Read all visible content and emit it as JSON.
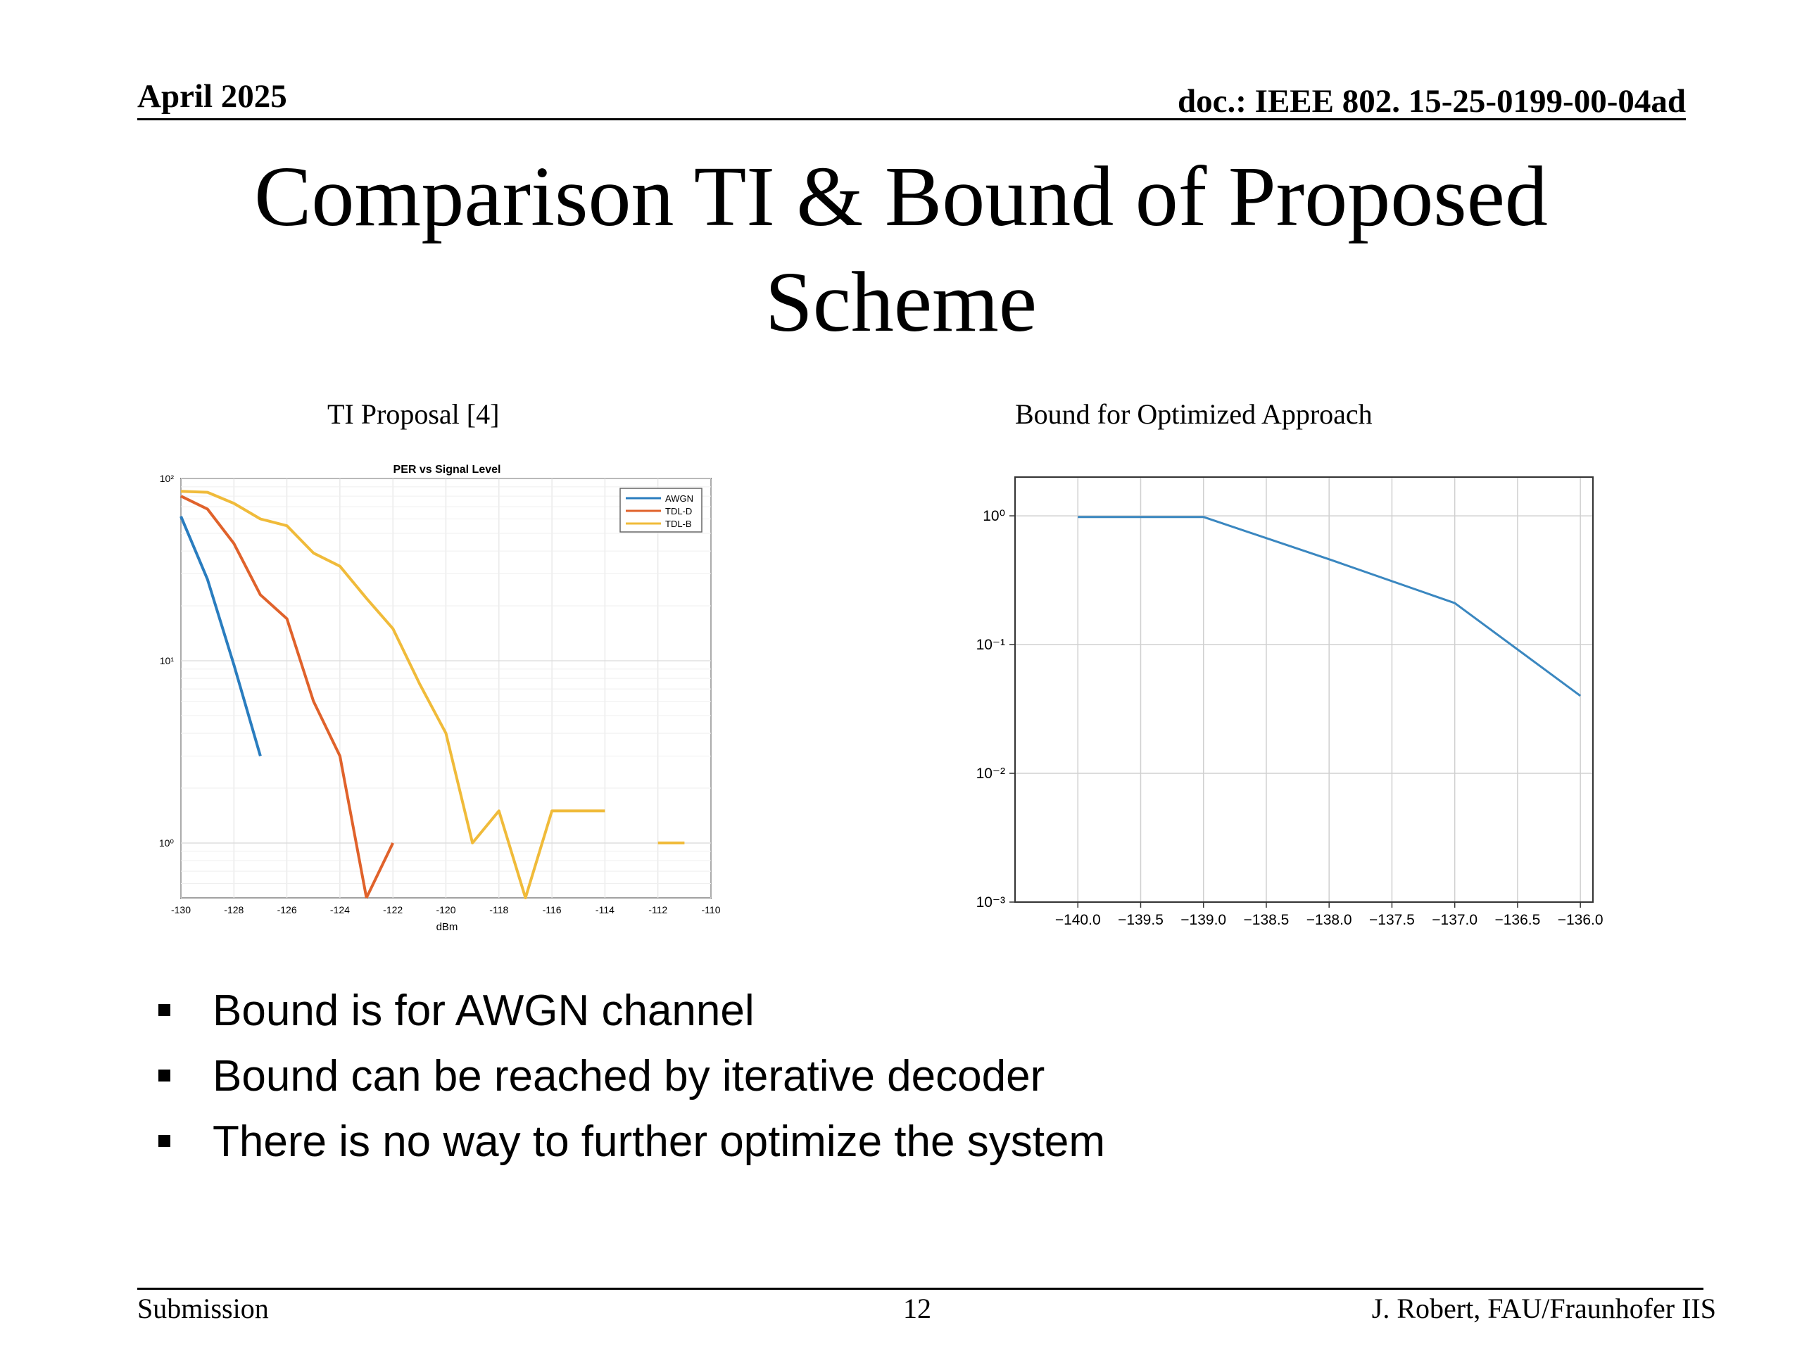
{
  "header": {
    "date": "April 2025",
    "doc": "doc.: IEEE 802. 15-25-0199-00-04ad"
  },
  "title": {
    "line1": "Comparison TI & Bound of Proposed",
    "line2": "Scheme"
  },
  "left_caption": "TI Proposal [4]",
  "right_caption": "Bound for Optimized Approach",
  "bullets": [
    "Bound is for AWGN channel",
    "Bound can be reached by iterative decoder",
    "There is no way to further optimize the system"
  ],
  "footer": {
    "left": "Submission",
    "page": "12",
    "right": "J. Robert, FAU/Fraunhofer IIS"
  },
  "chart_data": [
    {
      "type": "line",
      "title": "PER vs Signal Level",
      "xlabel": "dBm",
      "ylabel": "",
      "xlim": [
        -130,
        -110
      ],
      "ylim": [
        0.5,
        100
      ],
      "yscale": "log",
      "grid": true,
      "legend": "top-right",
      "x_ticks": [
        "-130",
        "-128",
        "-126",
        "-124",
        "-122",
        "-120",
        "-118",
        "-116",
        "-114",
        "-112",
        "-110"
      ],
      "y_ticks": [
        "10⁰",
        "10¹",
        "10²"
      ],
      "series": [
        {
          "name": "AWGN",
          "color": "#2a7dbf",
          "x": [
            -130,
            -129,
            -128,
            -127
          ],
          "y": [
            62,
            28,
            9.5,
            3
          ]
        },
        {
          "name": "TDL-D",
          "color": "#e0622b",
          "segments": [
            {
              "x": [
                -130,
                -129,
                -128,
                -127,
                -126,
                -125,
                -124,
                -123
              ],
              "y": [
                80,
                68,
                44,
                23,
                17,
                6,
                3,
                0.5
              ]
            },
            {
              "x": [
                -123,
                -122
              ],
              "y": [
                0.5,
                1.0
              ]
            }
          ]
        },
        {
          "name": "TDL-B",
          "color": "#f0bb3a",
          "segments": [
            {
              "x": [
                -130,
                -129,
                -128,
                -127,
                -126,
                -125,
                -124,
                -123,
                -122,
                -121,
                -120,
                -119,
                -118,
                -117,
                -116,
                -115,
                -114
              ],
              "y": [
                85,
                84,
                73,
                60,
                55,
                39,
                33,
                22,
                15,
                7.5,
                4,
                1,
                1.5,
                0.5,
                1.5,
                1.5,
                1.5
              ]
            },
            {
              "x": [
                -112,
                -111
              ],
              "y": [
                1,
                1
              ]
            }
          ]
        }
      ]
    },
    {
      "type": "line",
      "title": "",
      "xlabel": "",
      "ylabel": "",
      "xlim": [
        -140.5,
        -135.9
      ],
      "ylim": [
        0.001,
        2
      ],
      "yscale": "log",
      "grid": true,
      "x_ticks": [
        "−140.0",
        "−139.5",
        "−139.0",
        "−138.5",
        "−138.0",
        "−137.5",
        "−137.0",
        "−136.5",
        "−136.0"
      ],
      "y_ticks": [
        "10⁻³",
        "10⁻²",
        "10⁻¹",
        "10⁰"
      ],
      "series": [
        {
          "color": "#3a87c0",
          "x": [
            -140,
            -139,
            -138,
            -137,
            -136
          ],
          "y": [
            0.98,
            0.98,
            0.46,
            0.21,
            0.04
          ]
        }
      ]
    }
  ]
}
